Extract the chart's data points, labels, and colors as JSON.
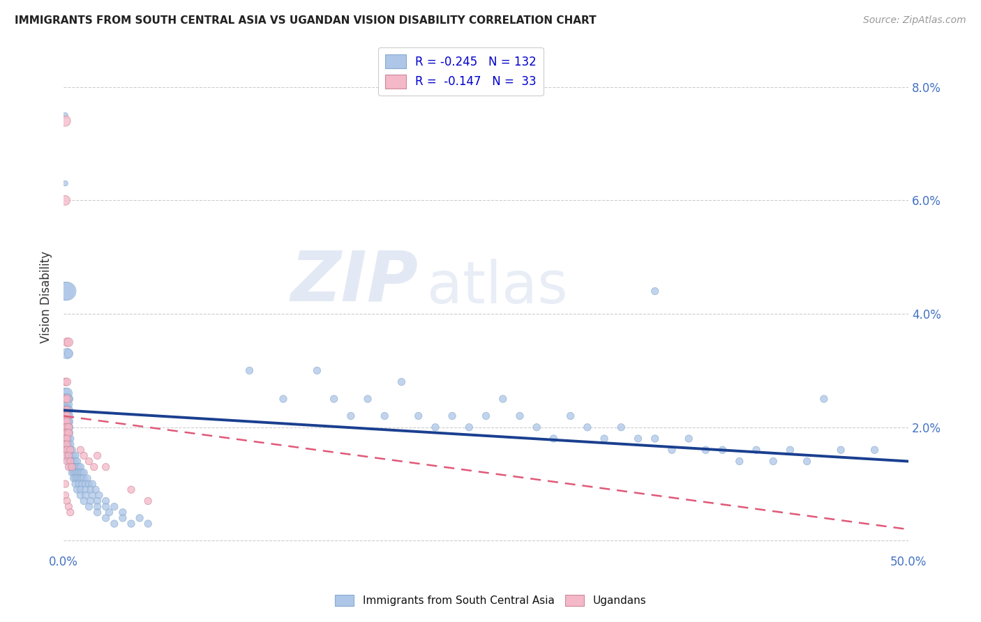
{
  "title": "IMMIGRANTS FROM SOUTH CENTRAL ASIA VS UGANDAN VISION DISABILITY CORRELATION CHART",
  "source": "Source: ZipAtlas.com",
  "ylabel": "Vision Disability",
  "xlim": [
    0.0,
    0.5
  ],
  "ylim": [
    -0.002,
    0.088
  ],
  "yticks": [
    0.0,
    0.02,
    0.04,
    0.06,
    0.08
  ],
  "ytick_labels": [
    "",
    "2.0%",
    "4.0%",
    "6.0%",
    "8.0%"
  ],
  "xticks": [
    0.0,
    0.1,
    0.2,
    0.3,
    0.4,
    0.5
  ],
  "xtick_labels": [
    "0.0%",
    "",
    "",
    "",
    "",
    "50.0%"
  ],
  "watermark_line1": "ZIP",
  "watermark_line2": "atlas",
  "blue_color": "#aec6e8",
  "pink_color": "#f4b8c8",
  "blue_line_color": "#1a3f8f",
  "pink_line_color": "#e05878",
  "background_color": "#ffffff",
  "grid_color": "#c8c8c8",
  "blue_scatter": [
    [
      0.001,
      0.075
    ],
    [
      0.001,
      0.063
    ],
    [
      0.002,
      0.033
    ],
    [
      0.003,
      0.033
    ],
    [
      0.001,
      0.044
    ],
    [
      0.002,
      0.044
    ],
    [
      0.001,
      0.026
    ],
    [
      0.002,
      0.026
    ],
    [
      0.003,
      0.025
    ],
    [
      0.001,
      0.025
    ],
    [
      0.002,
      0.025
    ],
    [
      0.001,
      0.024
    ],
    [
      0.002,
      0.024
    ],
    [
      0.001,
      0.023
    ],
    [
      0.002,
      0.023
    ],
    [
      0.003,
      0.023
    ],
    [
      0.001,
      0.022
    ],
    [
      0.002,
      0.022
    ],
    [
      0.003,
      0.022
    ],
    [
      0.001,
      0.021
    ],
    [
      0.002,
      0.021
    ],
    [
      0.003,
      0.021
    ],
    [
      0.001,
      0.02
    ],
    [
      0.002,
      0.02
    ],
    [
      0.003,
      0.02
    ],
    [
      0.001,
      0.019
    ],
    [
      0.002,
      0.019
    ],
    [
      0.003,
      0.019
    ],
    [
      0.001,
      0.018
    ],
    [
      0.002,
      0.018
    ],
    [
      0.003,
      0.018
    ],
    [
      0.004,
      0.018
    ],
    [
      0.001,
      0.017
    ],
    [
      0.002,
      0.017
    ],
    [
      0.003,
      0.017
    ],
    [
      0.004,
      0.017
    ],
    [
      0.001,
      0.016
    ],
    [
      0.002,
      0.016
    ],
    [
      0.003,
      0.016
    ],
    [
      0.004,
      0.016
    ],
    [
      0.005,
      0.016
    ],
    [
      0.001,
      0.015
    ],
    [
      0.002,
      0.015
    ],
    [
      0.003,
      0.015
    ],
    [
      0.004,
      0.015
    ],
    [
      0.005,
      0.015
    ],
    [
      0.006,
      0.015
    ],
    [
      0.007,
      0.015
    ],
    [
      0.003,
      0.014
    ],
    [
      0.004,
      0.014
    ],
    [
      0.005,
      0.014
    ],
    [
      0.006,
      0.014
    ],
    [
      0.007,
      0.014
    ],
    [
      0.008,
      0.014
    ],
    [
      0.004,
      0.013
    ],
    [
      0.005,
      0.013
    ],
    [
      0.006,
      0.013
    ],
    [
      0.007,
      0.013
    ],
    [
      0.008,
      0.013
    ],
    [
      0.009,
      0.013
    ],
    [
      0.01,
      0.013
    ],
    [
      0.005,
      0.012
    ],
    [
      0.006,
      0.012
    ],
    [
      0.007,
      0.012
    ],
    [
      0.008,
      0.012
    ],
    [
      0.009,
      0.012
    ],
    [
      0.01,
      0.012
    ],
    [
      0.011,
      0.012
    ],
    [
      0.012,
      0.012
    ],
    [
      0.006,
      0.011
    ],
    [
      0.007,
      0.011
    ],
    [
      0.008,
      0.011
    ],
    [
      0.009,
      0.011
    ],
    [
      0.01,
      0.011
    ],
    [
      0.011,
      0.011
    ],
    [
      0.012,
      0.011
    ],
    [
      0.014,
      0.011
    ],
    [
      0.007,
      0.01
    ],
    [
      0.009,
      0.01
    ],
    [
      0.011,
      0.01
    ],
    [
      0.013,
      0.01
    ],
    [
      0.015,
      0.01
    ],
    [
      0.017,
      0.01
    ],
    [
      0.008,
      0.009
    ],
    [
      0.01,
      0.009
    ],
    [
      0.013,
      0.009
    ],
    [
      0.016,
      0.009
    ],
    [
      0.019,
      0.009
    ],
    [
      0.01,
      0.008
    ],
    [
      0.013,
      0.008
    ],
    [
      0.017,
      0.008
    ],
    [
      0.021,
      0.008
    ],
    [
      0.012,
      0.007
    ],
    [
      0.016,
      0.007
    ],
    [
      0.02,
      0.007
    ],
    [
      0.025,
      0.007
    ],
    [
      0.015,
      0.006
    ],
    [
      0.02,
      0.006
    ],
    [
      0.025,
      0.006
    ],
    [
      0.03,
      0.006
    ],
    [
      0.02,
      0.005
    ],
    [
      0.027,
      0.005
    ],
    [
      0.035,
      0.005
    ],
    [
      0.025,
      0.004
    ],
    [
      0.035,
      0.004
    ],
    [
      0.045,
      0.004
    ],
    [
      0.03,
      0.003
    ],
    [
      0.04,
      0.003
    ],
    [
      0.05,
      0.003
    ],
    [
      0.11,
      0.03
    ],
    [
      0.13,
      0.025
    ],
    [
      0.15,
      0.03
    ],
    [
      0.16,
      0.025
    ],
    [
      0.17,
      0.022
    ],
    [
      0.18,
      0.025
    ],
    [
      0.19,
      0.022
    ],
    [
      0.2,
      0.028
    ],
    [
      0.21,
      0.022
    ],
    [
      0.22,
      0.02
    ],
    [
      0.23,
      0.022
    ],
    [
      0.24,
      0.02
    ],
    [
      0.25,
      0.022
    ],
    [
      0.26,
      0.025
    ],
    [
      0.27,
      0.022
    ],
    [
      0.28,
      0.02
    ],
    [
      0.29,
      0.018
    ],
    [
      0.3,
      0.022
    ],
    [
      0.31,
      0.02
    ],
    [
      0.32,
      0.018
    ],
    [
      0.33,
      0.02
    ],
    [
      0.34,
      0.018
    ],
    [
      0.35,
      0.018
    ],
    [
      0.36,
      0.016
    ],
    [
      0.37,
      0.018
    ],
    [
      0.38,
      0.016
    ],
    [
      0.39,
      0.016
    ],
    [
      0.4,
      0.014
    ],
    [
      0.41,
      0.016
    ],
    [
      0.42,
      0.014
    ],
    [
      0.43,
      0.016
    ],
    [
      0.44,
      0.014
    ],
    [
      0.45,
      0.025
    ],
    [
      0.46,
      0.016
    ],
    [
      0.35,
      0.044
    ],
    [
      0.48,
      0.016
    ]
  ],
  "pink_scatter": [
    [
      0.001,
      0.074
    ],
    [
      0.001,
      0.06
    ],
    [
      0.002,
      0.035
    ],
    [
      0.003,
      0.035
    ],
    [
      0.001,
      0.028
    ],
    [
      0.002,
      0.028
    ],
    [
      0.001,
      0.025
    ],
    [
      0.002,
      0.025
    ],
    [
      0.001,
      0.023
    ],
    [
      0.002,
      0.023
    ],
    [
      0.001,
      0.022
    ],
    [
      0.002,
      0.022
    ],
    [
      0.001,
      0.021
    ],
    [
      0.002,
      0.021
    ],
    [
      0.001,
      0.02
    ],
    [
      0.002,
      0.02
    ],
    [
      0.003,
      0.02
    ],
    [
      0.001,
      0.019
    ],
    [
      0.002,
      0.019
    ],
    [
      0.003,
      0.019
    ],
    [
      0.001,
      0.018
    ],
    [
      0.002,
      0.018
    ],
    [
      0.001,
      0.017
    ],
    [
      0.002,
      0.017
    ],
    [
      0.001,
      0.016
    ],
    [
      0.002,
      0.016
    ],
    [
      0.004,
      0.016
    ],
    [
      0.001,
      0.015
    ],
    [
      0.003,
      0.015
    ],
    [
      0.002,
      0.014
    ],
    [
      0.004,
      0.014
    ],
    [
      0.003,
      0.013
    ],
    [
      0.005,
      0.013
    ],
    [
      0.001,
      0.01
    ],
    [
      0.01,
      0.016
    ],
    [
      0.012,
      0.015
    ],
    [
      0.015,
      0.014
    ],
    [
      0.018,
      0.013
    ],
    [
      0.02,
      0.015
    ],
    [
      0.025,
      0.013
    ],
    [
      0.04,
      0.009
    ],
    [
      0.05,
      0.007
    ],
    [
      0.001,
      0.008
    ],
    [
      0.002,
      0.007
    ],
    [
      0.003,
      0.006
    ],
    [
      0.004,
      0.005
    ]
  ],
  "blue_trend_x": [
    0.0,
    0.5
  ],
  "blue_trend_y": [
    0.023,
    0.014
  ],
  "pink_trend_x": [
    0.0,
    0.5
  ],
  "pink_trend_y": [
    0.022,
    0.002
  ]
}
